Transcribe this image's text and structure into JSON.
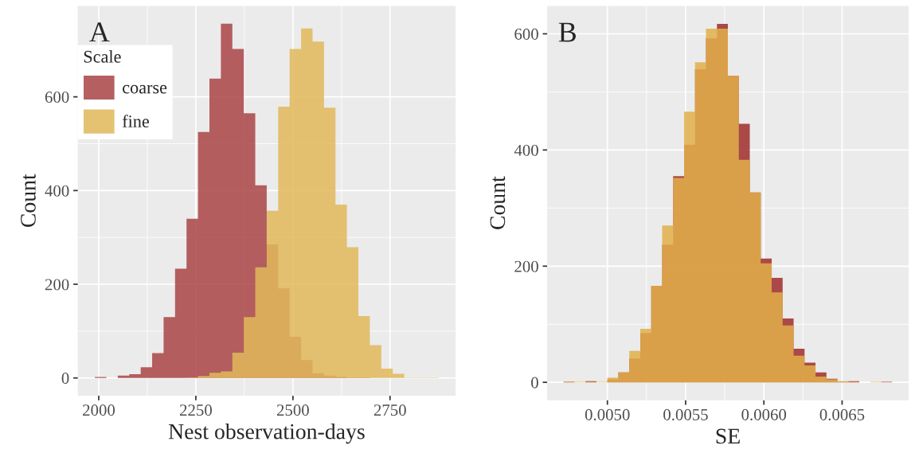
{
  "chart_data": [
    {
      "type": "histogram",
      "xlabel": "Nest observation-days",
      "ylabel": "Count",
      "legend_title": "Scale",
      "legend": "top left",
      "grid": true,
      "annotations": [
        "A"
      ],
      "bins": [
        1990,
        2019.5,
        2049,
        2078.5,
        2108,
        2137.5,
        2167,
        2196.5,
        2226,
        2255.5,
        2285,
        2314.5,
        2344,
        2373.5,
        2403,
        2432.5,
        2462,
        2491.5,
        2521,
        2550.5,
        2580,
        2609.5,
        2639,
        2668.5,
        2698,
        2727.5,
        2757,
        2786.5,
        2816,
        2845.5,
        2875
      ],
      "series": [
        {
          "name": "coarse",
          "color": "#a94446",
          "values": [
            2,
            0,
            5,
            8,
            23,
            53,
            130,
            233,
            340,
            525,
            639,
            756,
            702,
            565,
            411,
            285,
            191,
            88,
            38,
            10,
            5,
            2,
            1,
            1,
            0,
            0,
            0,
            0,
            0,
            0
          ]
        },
        {
          "name": "fine",
          "color": "#e0b85a",
          "values": [
            0,
            0,
            0,
            0,
            0,
            0,
            0,
            0,
            1,
            4,
            11,
            14,
            54,
            130,
            236,
            357,
            579,
            702,
            746,
            718,
            577,
            370,
            279,
            132,
            70,
            20,
            9,
            1,
            1,
            1
          ]
        }
      ],
      "xlim": [
        1946,
        2919
      ],
      "ylim": [
        -38,
        794
      ],
      "xticks": [
        2000,
        2250,
        2500,
        2750
      ],
      "yticks": [
        0,
        200,
        400,
        600
      ]
    },
    {
      "type": "histogram",
      "xlabel": "SE",
      "ylabel": "Count",
      "grid": true,
      "annotations": [
        "B"
      ],
      "bins": [
        0.00472,
        0.00479,
        0.00486,
        0.00493,
        0.005,
        0.00507,
        0.00514,
        0.00521,
        0.00528,
        0.00535,
        0.00542,
        0.00549,
        0.00556,
        0.00563,
        0.0057,
        0.00577,
        0.00584,
        0.00591,
        0.00598,
        0.00605,
        0.00612,
        0.00619,
        0.00626,
        0.00633,
        0.0064,
        0.00647,
        0.00654,
        0.00661,
        0.00668,
        0.00675,
        0.00682
      ],
      "series": [
        {
          "color": "#a02c2c",
          "values": [
            1,
            0,
            2,
            0,
            5,
            17,
            41,
            85,
            166,
            237,
            355,
            409,
            539,
            592,
            617,
            528,
            445,
            327,
            213,
            180,
            110,
            58,
            34,
            17,
            6,
            1,
            2,
            0,
            0,
            1
          ]
        },
        {
          "color": "#e0b04a",
          "values": [
            1,
            1,
            1,
            1,
            8,
            17,
            54,
            92,
            166,
            270,
            352,
            466,
            551,
            609,
            609,
            528,
            383,
            327,
            205,
            155,
            98,
            46,
            29,
            10,
            5,
            2,
            1,
            0,
            1,
            0
          ]
        }
      ],
      "xlim": [
        0.004615,
        0.006925
      ],
      "ylim": [
        -31,
        648
      ],
      "xticks": [
        {
          "value": 0.005,
          "label": "0.0050"
        },
        {
          "value": 0.0055,
          "label": "0.0055"
        },
        {
          "value": 0.006,
          "label": "0.0060"
        },
        {
          "value": 0.0065,
          "label": "0.0065"
        }
      ],
      "yticks": [
        0,
        200,
        400,
        600
      ]
    }
  ]
}
